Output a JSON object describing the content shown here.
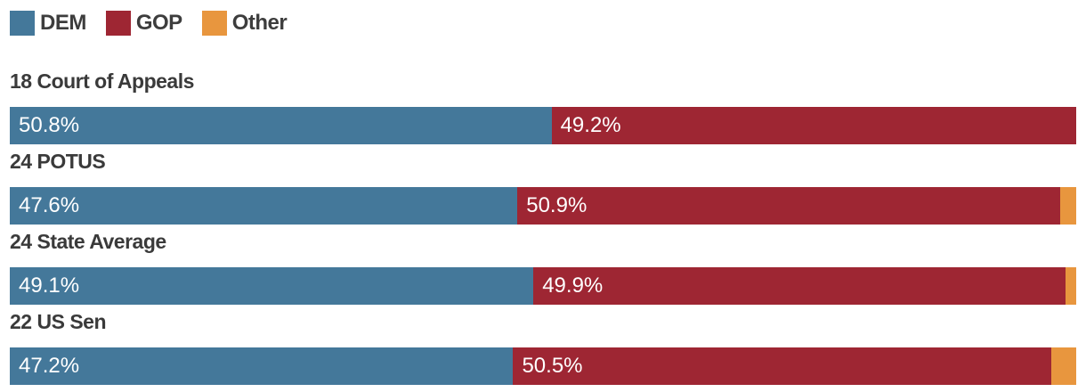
{
  "chart_data": {
    "type": "bar",
    "orientation": "horizontal_stacked",
    "title": "",
    "xlabel": "",
    "ylabel": "",
    "unit": "%",
    "xlim": [
      0,
      100
    ],
    "grid": false,
    "legend_position": "top-left",
    "legend": [
      {
        "name": "dem-swatch",
        "label": "DEM",
        "color": "#44789A"
      },
      {
        "name": "gop-swatch",
        "label": "GOP",
        "color": "#9E2633"
      },
      {
        "name": "other-swatch",
        "label": "Other",
        "color": "#E8963E"
      }
    ],
    "colors": {
      "dem": "#44789A",
      "gop": "#9E2633",
      "other": "#E8963E",
      "title_text": "#3a3a3a",
      "bar_label_text": "#ffffff"
    },
    "categories": [
      "18 Court of Appeals",
      "24 POTUS",
      "24 State Average",
      "22 US Sen"
    ],
    "series": [
      {
        "name": "DEM",
        "values": [
          50.8,
          47.6,
          49.1,
          47.2
        ]
      },
      {
        "name": "GOP",
        "values": [
          49.2,
          50.9,
          49.9,
          50.5
        ]
      },
      {
        "name": "Other",
        "values": [
          0.0,
          1.5,
          1.0,
          2.3
        ]
      }
    ],
    "rows": [
      {
        "category": "18 Court of Appeals",
        "dem": 50.8,
        "gop": 49.2,
        "other": 0.0,
        "dem_label": "50.8%",
        "gop_label": "49.2%"
      },
      {
        "category": "24 POTUS",
        "dem": 47.6,
        "gop": 50.9,
        "other": 1.5,
        "dem_label": "47.6%",
        "gop_label": "50.9%"
      },
      {
        "category": "24 State Average",
        "dem": 49.1,
        "gop": 49.9,
        "other": 1.0,
        "dem_label": "49.1%",
        "gop_label": "49.9%"
      },
      {
        "category": "22 US Sen",
        "dem": 47.2,
        "gop": 50.5,
        "other": 2.3,
        "dem_label": "47.2%",
        "gop_label": "50.5%"
      }
    ]
  }
}
